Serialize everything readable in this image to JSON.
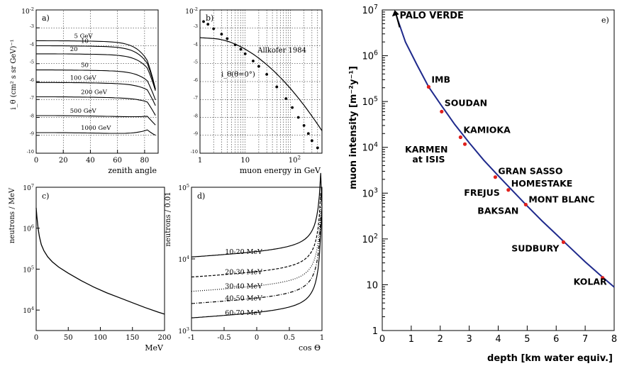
{
  "chart_data": [
    {
      "id": "a",
      "type": "line",
      "panel_label": "a)",
      "xlabel": "zenith angle",
      "ylabel": "i_θ (cm² s sr GeV)⁻¹",
      "xlim": [
        0,
        90
      ],
      "ylog": true,
      "ylim_exp": [
        -10,
        -2
      ],
      "x_ticks": [
        "0",
        "20",
        "40",
        "60",
        "80"
      ],
      "y_ticks_exp": [
        "-3",
        "-4",
        "-5",
        "-6",
        "-7",
        "-8",
        "-9",
        "-10"
      ],
      "y_top_label": "10",
      "y_top_exp": "-2",
      "series": [
        {
          "name": "5 GeV",
          "y0": -3.72,
          "drop": 0.7
        },
        {
          "name": "10",
          "y0": -4.0,
          "drop": 0.6
        },
        {
          "name": "20",
          "y0": -4.45,
          "drop": 0.45
        },
        {
          "name": "50",
          "y0": -5.35,
          "drop": 0.3
        },
        {
          "name": "100 GeV",
          "y0": -6.05,
          "drop": 0.15
        },
        {
          "name": "200 GeV",
          "y0": -6.85,
          "drop": 0.05
        },
        {
          "name": "500 GeV",
          "y0": -7.9,
          "drop": -0.15
        },
        {
          "name": "1000 GeV",
          "y0": -8.85,
          "drop": -0.3
        }
      ]
    },
    {
      "id": "b",
      "type": "scatter",
      "panel_label": "b)",
      "xlabel": "muon energy in GeV",
      "xlog": true,
      "ylog": true,
      "ylim_exp": [
        -10,
        -2
      ],
      "y_ticks_exp": [
        "-3",
        "-4",
        "-5",
        "-6",
        "-7",
        "-8",
        "-9",
        "-10"
      ],
      "y_top_label": "10",
      "y_top_exp": "-2",
      "x_ticks": [
        {
          "base": "1",
          "exp": ""
        },
        {
          "base": "10",
          "exp": ""
        },
        {
          "base": "10",
          "exp": "2"
        }
      ],
      "annotation": "Allkofer 1984",
      "curve_label": "i_θ(θ=0°)",
      "points": [
        {
          "x": 1.2,
          "y": -2.65
        },
        {
          "x": 1.5,
          "y": -2.8
        },
        {
          "x": 2.0,
          "y": -3.05
        },
        {
          "x": 3.0,
          "y": -3.35
        },
        {
          "x": 4.0,
          "y": -3.6
        },
        {
          "x": 6.0,
          "y": -3.95
        },
        {
          "x": 8.0,
          "y": -4.2
        },
        {
          "x": 10,
          "y": -4.45
        },
        {
          "x": 15,
          "y": -4.85
        },
        {
          "x": 20,
          "y": -5.15
        },
        {
          "x": 30,
          "y": -5.6
        },
        {
          "x": 50,
          "y": -6.3
        },
        {
          "x": 80,
          "y": -6.95
        },
        {
          "x": 110,
          "y": -7.45
        },
        {
          "x": 150,
          "y": -8.0
        },
        {
          "x": 200,
          "y": -8.45
        },
        {
          "x": 250,
          "y": -8.9
        },
        {
          "x": 300,
          "y": -9.3
        },
        {
          "x": 400,
          "y": -9.7
        }
      ]
    },
    {
      "id": "c",
      "type": "line",
      "panel_label": "c)",
      "xlabel": "MeV",
      "ylabel": "neutrons / MeV",
      "xlim": [
        0,
        200
      ],
      "ylog": true,
      "ylim_exp": [
        3.5,
        7
      ],
      "x_ticks": [
        "0",
        "50",
        "100",
        "150",
        "200"
      ],
      "y_ticks": [
        {
          "base": "10",
          "exp": "7",
          "e": 7
        },
        {
          "base": "10",
          "exp": "6",
          "e": 6
        },
        {
          "base": "10",
          "exp": "5",
          "e": 5
        },
        {
          "base": "10",
          "exp": "4",
          "e": 4
        }
      ],
      "series": [
        {
          "name": "",
          "x": [
            0,
            1,
            3,
            5,
            8,
            12,
            18,
            25,
            35,
            50,
            70,
            90,
            110,
            130,
            150,
            170,
            190,
            200
          ],
          "y": [
            6.5,
            6.3,
            6.0,
            5.8,
            5.6,
            5.45,
            5.3,
            5.18,
            5.05,
            4.9,
            4.72,
            4.56,
            4.42,
            4.3,
            4.18,
            4.06,
            3.95,
            3.9
          ]
        }
      ]
    },
    {
      "id": "d",
      "type": "line",
      "panel_label": "d)",
      "xlabel": "cos Θ",
      "ylabel": "neutrons / 0.01",
      "xlim": [
        -1,
        1
      ],
      "ylog": true,
      "ylim_exp": [
        3,
        5
      ],
      "x_ticks": [
        "-1",
        "-0.5",
        "0",
        "0.5",
        "1"
      ],
      "y_ticks": [
        {
          "base": "10",
          "exp": "5",
          "e": 5
        },
        {
          "base": "10",
          "exp": "4",
          "e": 4
        },
        {
          "base": "10",
          "exp": "3",
          "e": 3
        }
      ],
      "series": [
        {
          "name": "10-20 MeV",
          "level": 4.0,
          "style": "solid"
        },
        {
          "name": "20-30 MeV",
          "level": 3.72,
          "style": "dashed"
        },
        {
          "name": "30-40 MeV",
          "level": 3.52,
          "style": "dotted"
        },
        {
          "name": "40-50 MeV",
          "level": 3.35,
          "style": "dashdot"
        },
        {
          "name": "60-70 MeV",
          "level": 3.15,
          "style": "solid"
        }
      ]
    },
    {
      "id": "e",
      "type": "line",
      "panel_label": "e)",
      "xlabel": "depth [km water equiv.]",
      "ylabel": "muon intensity [m⁻²y⁻¹]",
      "xlim": [
        0,
        8
      ],
      "ylog": true,
      "ylim_exp": [
        0,
        7
      ],
      "x_ticks": [
        "0",
        "1",
        "2",
        "3",
        "4",
        "5",
        "6",
        "7",
        "8"
      ],
      "y_ticks": [
        {
          "base": "10",
          "exp": "7",
          "e": 7
        },
        {
          "base": "10",
          "exp": "6",
          "e": 6
        },
        {
          "base": "10",
          "exp": "5",
          "e": 5
        },
        {
          "base": "10",
          "exp": "4",
          "e": 4
        },
        {
          "base": "10",
          "exp": "3",
          "e": 3
        },
        {
          "base": "10",
          "exp": "2",
          "e": 2
        },
        {
          "base": "10",
          "exp": "",
          "e": 1
        },
        {
          "base": "1",
          "exp": "",
          "e": 0
        }
      ],
      "curve": {
        "x": [
          0.5,
          0.8,
          1.2,
          1.6,
          2.0,
          2.5,
          3.0,
          3.5,
          4.0,
          4.5,
          5.0,
          5.5,
          6.0,
          6.5,
          7.0,
          7.5,
          8.0
        ],
        "y": [
          6.85,
          6.3,
          5.8,
          5.32,
          4.95,
          4.5,
          4.1,
          3.72,
          3.38,
          3.05,
          2.72,
          2.4,
          2.1,
          1.8,
          1.5,
          1.22,
          0.95
        ]
      },
      "arrow_label": "PALO VERDE",
      "labs": [
        {
          "name": "IMB",
          "x": 1.6,
          "y": 5.32,
          "dx": 4,
          "dy": -6,
          "anchor": "start"
        },
        {
          "name": "SOUDAN",
          "x": 2.05,
          "y": 4.78,
          "dx": 4,
          "dy": -8,
          "anchor": "start"
        },
        {
          "name": "KAMIOKA",
          "x": 2.7,
          "y": 4.22,
          "dx": 4,
          "dy": -6,
          "anchor": "start"
        },
        {
          "name": "KARMEN",
          "x": 2.85,
          "y": 4.07,
          "dx": -24,
          "dy": 12,
          "anchor": "end"
        },
        {
          "name": "at ISIS",
          "x": 2.85,
          "y": 4.07,
          "dx": -28,
          "dy": 26,
          "anchor": "end"
        },
        {
          "name": "GRAN SASSO",
          "x": 3.9,
          "y": 3.35,
          "dx": 4,
          "dy": -4,
          "anchor": "start"
        },
        {
          "name": "HOMESTAKE",
          "x": 4.35,
          "y": 3.07,
          "dx": 4,
          "dy": -5,
          "anchor": "start"
        },
        {
          "name": "FREJUS",
          "x": 4.35,
          "y": 3.07,
          "dx": -12,
          "dy": 8,
          "anchor": "end"
        },
        {
          "name": "MONT BLANC",
          "x": 4.95,
          "y": 2.75,
          "dx": 4,
          "dy": -3,
          "anchor": "start"
        },
        {
          "name": "BAKSAN",
          "x": 4.95,
          "y": 2.7,
          "dx": -10,
          "dy": 10,
          "anchor": "end"
        },
        {
          "name": "SUDBURY",
          "x": 6.25,
          "y": 1.93,
          "dx": -6,
          "dy": 13,
          "anchor": "end"
        },
        {
          "name": "KOLAR",
          "x": 7.6,
          "y": 1.15,
          "dx": 6,
          "dy": 10,
          "anchor": "end"
        }
      ],
      "colors": {
        "curve": "#1f2a8c",
        "point": "#e0201c",
        "lab_blue": "#1f2a8c"
      }
    }
  ]
}
